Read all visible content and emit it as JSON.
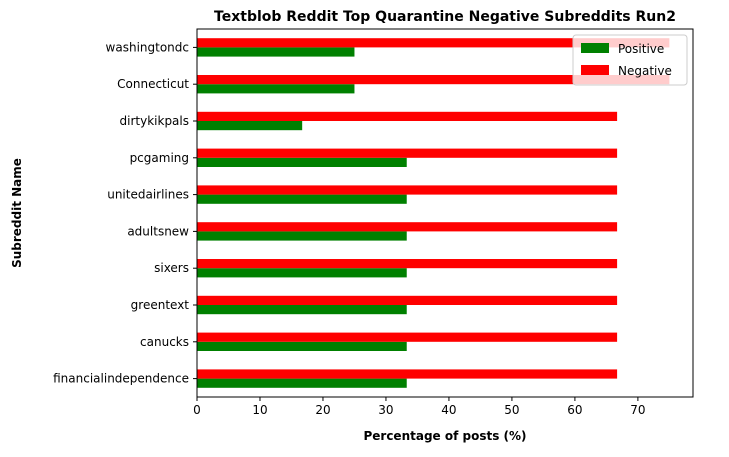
{
  "chart_data": {
    "type": "bar",
    "orientation": "horizontal",
    "title": "Textblob Reddit Top Quarantine Negative Subreddits Run2",
    "xlabel": "Percentage of posts (%)",
    "ylabel": "Subreddit Name",
    "categories": [
      "financialindependence",
      "canucks",
      "greentext",
      "sixers",
      "adultsnew",
      "unitedairlines",
      "pcgaming",
      "dirtykikpals",
      "Connecticut",
      "washingtondc"
    ],
    "series": [
      {
        "name": "Positive",
        "color": "#008000",
        "values": [
          33.3,
          33.3,
          33.3,
          33.3,
          33.3,
          33.3,
          33.3,
          16.7,
          25.0,
          25.0
        ]
      },
      {
        "name": "Negative",
        "color": "#ff0000",
        "values": [
          66.7,
          66.7,
          66.7,
          66.7,
          66.7,
          66.7,
          66.7,
          66.7,
          75.0,
          75.0
        ]
      }
    ],
    "xlim": [
      0,
      78.75
    ],
    "xticks": [
      0,
      10,
      20,
      30,
      40,
      50,
      60,
      70
    ],
    "legend": {
      "placement": "top-right",
      "entries": [
        "Positive",
        "Negative"
      ]
    },
    "grid": false
  }
}
